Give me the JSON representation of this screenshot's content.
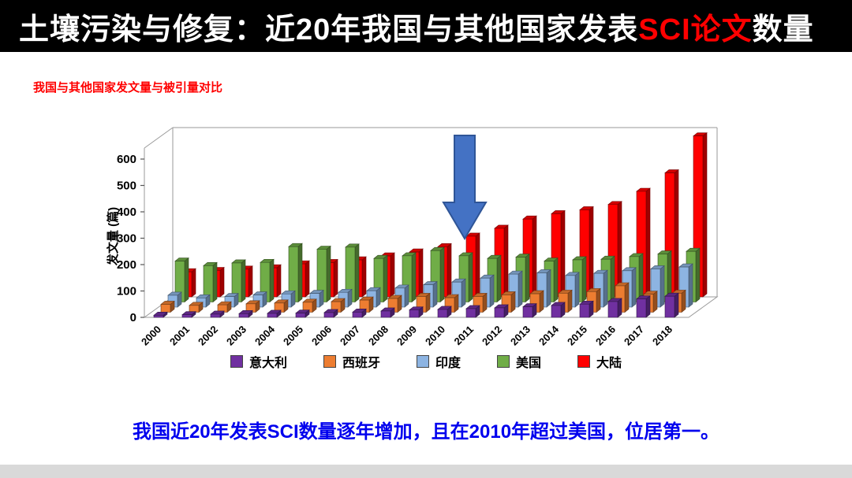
{
  "title": {
    "prefix": "土壤污染与修复：近20年我国与其他国家发表",
    "highlight": "SCI论文",
    "suffix": "数量"
  },
  "subtitle": "我国与其他国家发文量与被引量对比",
  "conclusion": "我国近20年发表SCI数量逐年增加，且在2010年超过美国，位居第一。",
  "colors": {
    "title_bar_bg": "#000000",
    "title_text": "#ffffff",
    "title_highlight": "#ff0000",
    "subtitle_text": "#ff0000",
    "conclusion_text": "#0000ee",
    "arrow_fill": "#4472c4",
    "arrow_stroke": "#2f5597"
  },
  "chart_data": {
    "type": "bar",
    "subtype": "3d-clustered-column",
    "title": "",
    "xlabel": "",
    "ylabel": "发文量 (篇)",
    "ylim": [
      0,
      600
    ],
    "yticks": [
      0,
      100,
      200,
      300,
      400,
      500,
      600
    ],
    "grid": false,
    "legend_position": "bottom",
    "categories": [
      "2000",
      "2001",
      "2002",
      "2003",
      "2004",
      "2005",
      "2006",
      "2007",
      "2008",
      "2009",
      "2010",
      "2011",
      "2012",
      "2013",
      "2014",
      "2015",
      "2016",
      "2017",
      "2018"
    ],
    "series": [
      {
        "name": "意大利",
        "color": "#7030a0",
        "values": [
          8,
          10,
          12,
          14,
          15,
          16,
          18,
          20,
          24,
          28,
          30,
          33,
          36,
          40,
          45,
          50,
          60,
          70,
          80
        ]
      },
      {
        "name": "西班牙",
        "color": "#ed7d31",
        "values": [
          30,
          26,
          28,
          32,
          35,
          38,
          40,
          46,
          52,
          60,
          55,
          60,
          66,
          70,
          72,
          78,
          100,
          68,
          72
        ]
      },
      {
        "name": "印度",
        "color": "#8db4e2",
        "values": [
          45,
          35,
          40,
          46,
          50,
          52,
          56,
          62,
          72,
          85,
          95,
          110,
          125,
          130,
          120,
          128,
          138,
          145,
          152
        ]
      },
      {
        "name": "美国",
        "color": "#70ad47",
        "values": [
          155,
          138,
          148,
          150,
          210,
          200,
          208,
          165,
          175,
          195,
          175,
          165,
          170,
          155,
          160,
          162,
          172,
          182,
          192
        ]
      },
      {
        "name": "大陆",
        "color": "#ff0000",
        "values": [
          95,
          100,
          105,
          110,
          125,
          130,
          140,
          155,
          170,
          190,
          230,
          260,
          295,
          315,
          330,
          350,
          400,
          470,
          610
        ]
      }
    ],
    "annotation": {
      "shape": "down-arrow",
      "at_category": "2010"
    }
  }
}
